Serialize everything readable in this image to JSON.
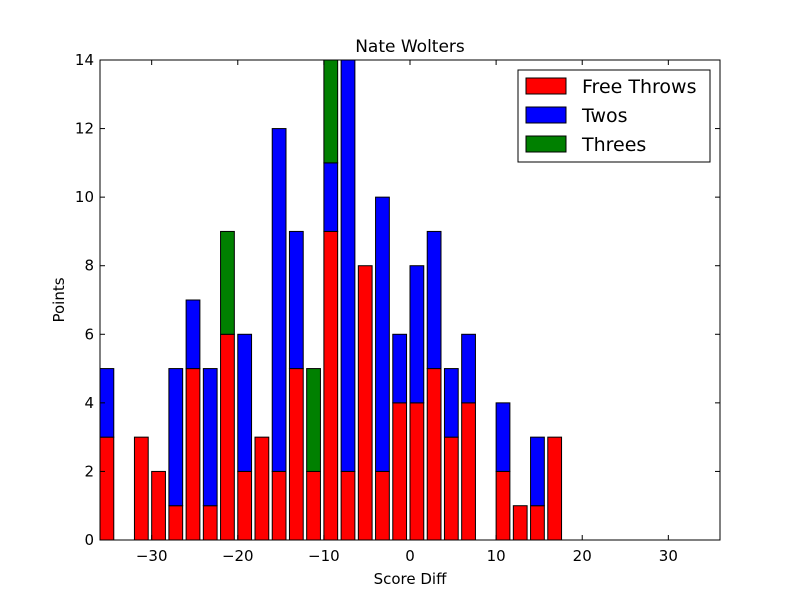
{
  "chart_data": {
    "type": "bar",
    "stacked": true,
    "title": "Nate Wolters",
    "xlabel": "Score Diff",
    "ylabel": "Points",
    "xlim": [
      -36,
      36
    ],
    "ylim": [
      0,
      14
    ],
    "xticks": [
      -30,
      -20,
      -10,
      0,
      10,
      20,
      30
    ],
    "xtick_labels": [
      "−30",
      "−20",
      "−10",
      "0",
      "10",
      "20",
      "30"
    ],
    "yticks": [
      0,
      2,
      4,
      6,
      8,
      10,
      12,
      14
    ],
    "ytick_labels": [
      "0",
      "2",
      "4",
      "6",
      "8",
      "10",
      "12",
      "14"
    ],
    "legend_position": "top-right",
    "bin_width": 1.6,
    "x": [
      -36,
      -34,
      -32,
      -30,
      -28,
      -26,
      -24,
      -22,
      -20,
      -18,
      -16,
      -14,
      -12,
      -10,
      -8,
      -6,
      -4,
      -2,
      0,
      2,
      4,
      6,
      8,
      10,
      12,
      14,
      16,
      18,
      20,
      22,
      24,
      26,
      28,
      30,
      32,
      34
    ],
    "series": [
      {
        "name": "Free Throws",
        "color": "#ff0000",
        "values": [
          3,
          0,
          3,
          2,
          1,
          5,
          1,
          6,
          2,
          3,
          2,
          5,
          2,
          9,
          2,
          8,
          2,
          4,
          4,
          5,
          3,
          4,
          0,
          2,
          1,
          1,
          3,
          0,
          0,
          0,
          0,
          0,
          0,
          0,
          0,
          0
        ]
      },
      {
        "name": "Twos",
        "color": "#0000ff",
        "values": [
          2,
          0,
          0,
          0,
          4,
          2,
          4,
          0,
          4,
          0,
          10,
          4,
          0,
          2,
          12,
          0,
          8,
          2,
          4,
          4,
          2,
          2,
          0,
          2,
          0,
          2,
          0,
          0,
          0,
          0,
          0,
          0,
          0,
          0,
          0,
          0
        ]
      },
      {
        "name": "Threes",
        "color": "#008000",
        "values": [
          0,
          0,
          0,
          0,
          0,
          0,
          0,
          3,
          0,
          0,
          0,
          0,
          3,
          3,
          0,
          0,
          0,
          0,
          0,
          0,
          0,
          0,
          0,
          0,
          0,
          0,
          0,
          0,
          0,
          0,
          0,
          0,
          0,
          0,
          0,
          0
        ]
      }
    ]
  }
}
